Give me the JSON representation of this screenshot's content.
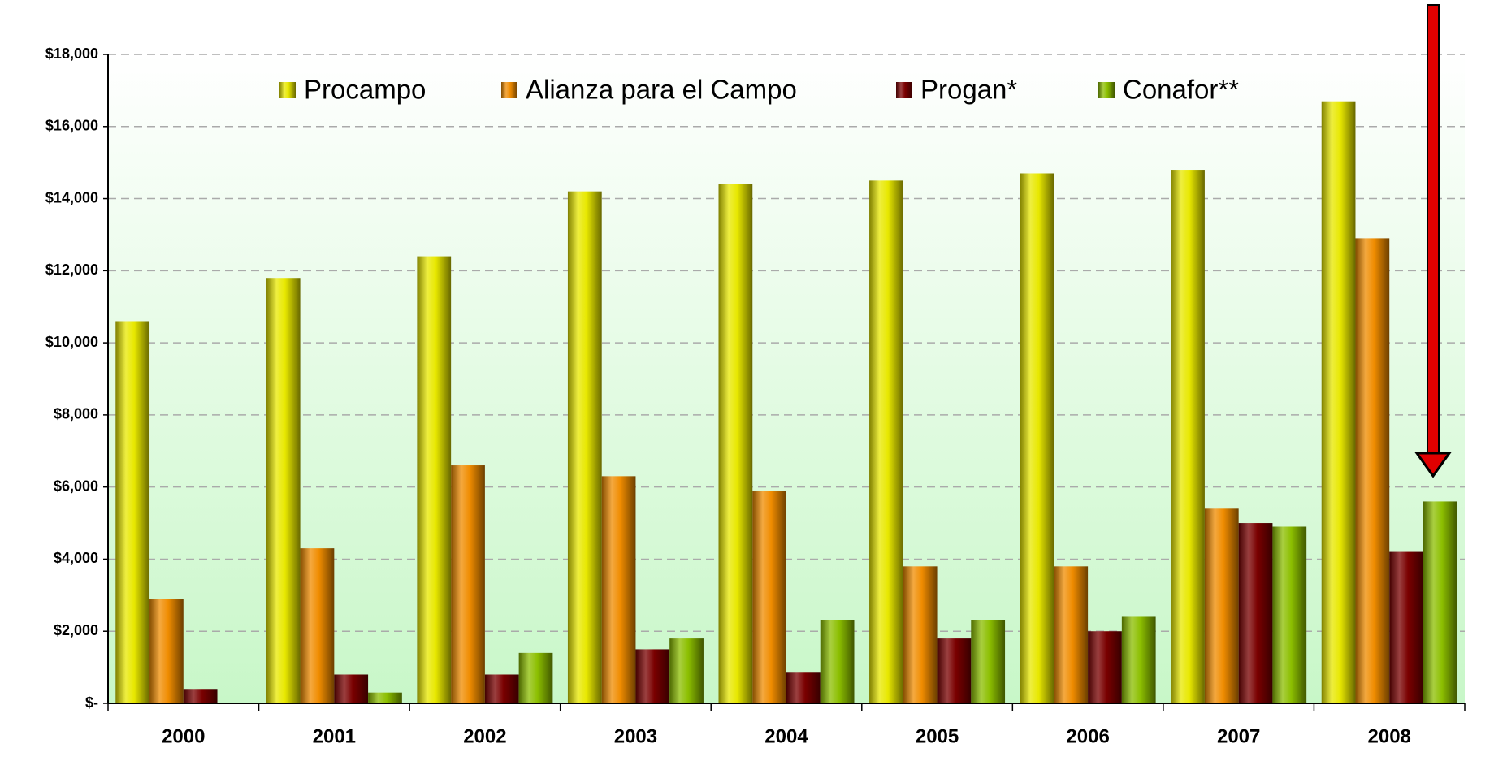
{
  "chart_data": {
    "type": "bar",
    "categories": [
      "2000",
      "2001",
      "2002",
      "2003",
      "2004",
      "2005",
      "2006",
      "2007",
      "2008"
    ],
    "series": [
      {
        "name": "Procampo",
        "color": "#e8e800",
        "values": [
          10600,
          11800,
          12400,
          14200,
          14400,
          14500,
          14700,
          14800,
          16700
        ]
      },
      {
        "name": "Alianza para el Campo",
        "color": "#f08c00",
        "values": [
          2900,
          4300,
          6600,
          6300,
          5900,
          3800,
          3800,
          5400,
          12900
        ]
      },
      {
        "name": "Progan*",
        "color": "#7a0000",
        "values": [
          400,
          800,
          800,
          1500,
          850,
          1800,
          2000,
          5000,
          4200
        ]
      },
      {
        "name": "Conafor**",
        "color": "#8cbf00",
        "values": [
          0,
          300,
          1400,
          1800,
          2300,
          2300,
          2400,
          4900,
          5600
        ]
      }
    ],
    "ylim": [
      0,
      18000
    ],
    "yticks": [
      {
        "value": 0,
        "label": "$-"
      },
      {
        "value": 2000,
        "label": "$2,000"
      },
      {
        "value": 4000,
        "label": "$4,000"
      },
      {
        "value": 6000,
        "label": "$6,000"
      },
      {
        "value": 8000,
        "label": "$8,000"
      },
      {
        "value": 10000,
        "label": "$10,000"
      },
      {
        "value": 12000,
        "label": "$12,000"
      },
      {
        "value": 14000,
        "label": "$14,000"
      },
      {
        "value": 16000,
        "label": "$16,000"
      },
      {
        "value": 18000,
        "label": "$18,000"
      }
    ],
    "grid": true,
    "legend": "top"
  }
}
